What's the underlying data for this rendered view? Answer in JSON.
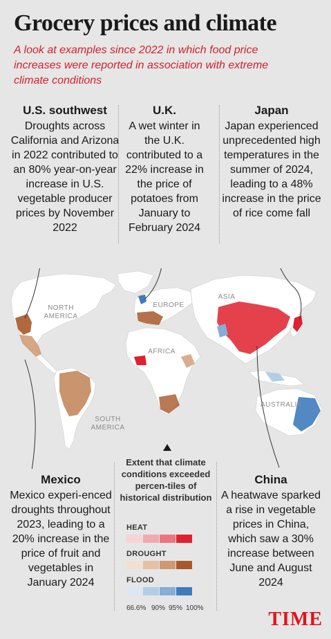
{
  "title": "Grocery prices and climate",
  "subtitle": "A look at examples since 2022 in which food price increases were reported in association with extreme climate conditions",
  "callouts": {
    "us_southwest": {
      "heading": "U.S. southwest",
      "body": "Droughts across California and Arizona in 2022 contributed to an 80% year-on-year increase in U.S. vegetable producer prices by November 2022"
    },
    "uk": {
      "heading": "U.K.",
      "body": "A wet winter in the U.K. contributed to a 22% increase in the price of potatoes from January to February 2024"
    },
    "japan": {
      "heading": "Japan",
      "body": "Japan experienced unprecedented high temperatures in the summer of 2024, leading to a 48% increase in the price of rice come fall"
    },
    "mexico": {
      "heading": "Mexico",
      "body": "Mexico experi-enced droughts throughout 2023, leading to a 20% increase in the price of fruit and vegetables in January 2024"
    },
    "china": {
      "heading": "China",
      "body": "A heatwave sparked a rise in vegetable prices in China, which saw a 30% increase between June and August 2024"
    }
  },
  "map_labels": {
    "north_america": "NORTH AMERICA",
    "south_america": "SOUTH AMERICA",
    "europe": "EUROPE",
    "africa": "AFRICA",
    "asia": "ASIA",
    "australia": "AUSTRALIA"
  },
  "legend": {
    "title": "Extent that climate conditions exceeded percen-tiles of historical distribution",
    "heat_label": "HEAT",
    "drought_label": "DROUGHT",
    "flood_label": "FLOOD",
    "ticks": [
      "66.6%",
      "90%",
      "95%",
      "100%"
    ],
    "heat_colors": [
      "#f7d3d6",
      "#f2a9b0",
      "#ec7580",
      "#e0202e"
    ],
    "drought_colors": [
      "#f1dfd2",
      "#e4c0a5",
      "#cf9972",
      "#a8582a"
    ],
    "flood_colors": [
      "#dbe7f3",
      "#b4cde6",
      "#86aed6",
      "#3f7bbd"
    ]
  },
  "brand": "TIME",
  "colors": {
    "accent_red": "#d3202b",
    "background": "#e6e6e6",
    "land": "#ffffff"
  }
}
